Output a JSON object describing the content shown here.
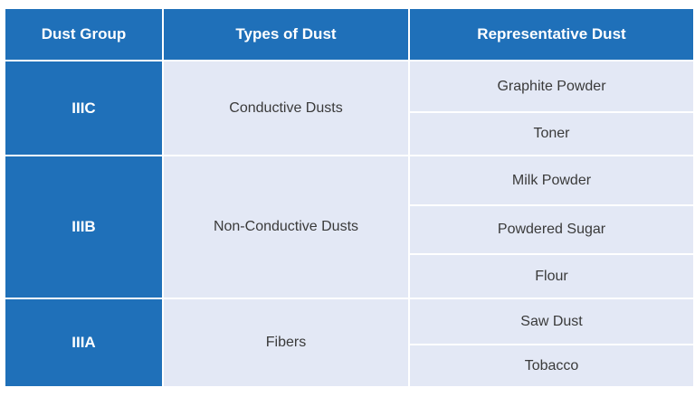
{
  "table": {
    "columns": [
      "Dust Group",
      "Types of Dust",
      "Representative Dust"
    ],
    "rows": [
      {
        "group": "IIIC",
        "type": "Conductive Dusts",
        "dusts": [
          "Graphite Powder",
          "Toner"
        ]
      },
      {
        "group": "IIIB",
        "type": "Non-Conductive Dusts",
        "dusts": [
          "Milk Powder",
          "Powdered Sugar",
          "Flour"
        ]
      },
      {
        "group": "IIIA",
        "type": "Fibers",
        "dusts": [
          "Saw Dust",
          "Tobacco"
        ]
      }
    ]
  }
}
